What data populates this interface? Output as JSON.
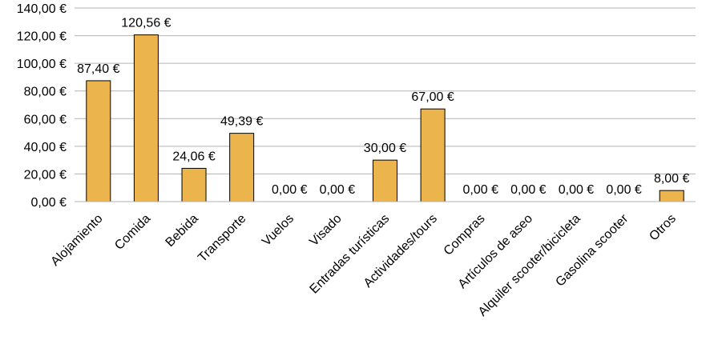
{
  "chart_data": {
    "type": "bar",
    "categories": [
      "Alojamiento",
      "Comida",
      "Bebida",
      "Transporte",
      "Vuelos",
      "Visado",
      "Entradas turísticas",
      "Actividades/tours",
      "Compras",
      "Artículos de aseo",
      "Alquiler scooter/bicicleta",
      "Gasolina scooter",
      "Otros"
    ],
    "values": [
      87.4,
      120.56,
      24.06,
      49.39,
      0.0,
      0.0,
      30.0,
      67.0,
      0.0,
      0.0,
      0.0,
      0.0,
      8.0
    ],
    "data_labels": [
      "87,40 €",
      "120,56 €",
      "24,06 €",
      "49,39 €",
      "0,00 €",
      "0,00 €",
      "30,00 €",
      "67,00 €",
      "0,00 €",
      "0,00 €",
      "0,00 €",
      "0,00 €",
      "8,00 €"
    ],
    "y_ticks": [
      0,
      20,
      40,
      60,
      80,
      100,
      120,
      140
    ],
    "y_tick_labels": [
      "0,00 €",
      "20,00 €",
      "40,00 €",
      "60,00 €",
      "80,00 €",
      "100,00 €",
      "120,00 €",
      "140,00 €"
    ],
    "ylim": [
      0,
      140
    ],
    "grid": true,
    "legend": "none",
    "bar_color": "#ecb44d",
    "bar_stroke": "#000000",
    "grid_color": "#b3b3b3"
  }
}
